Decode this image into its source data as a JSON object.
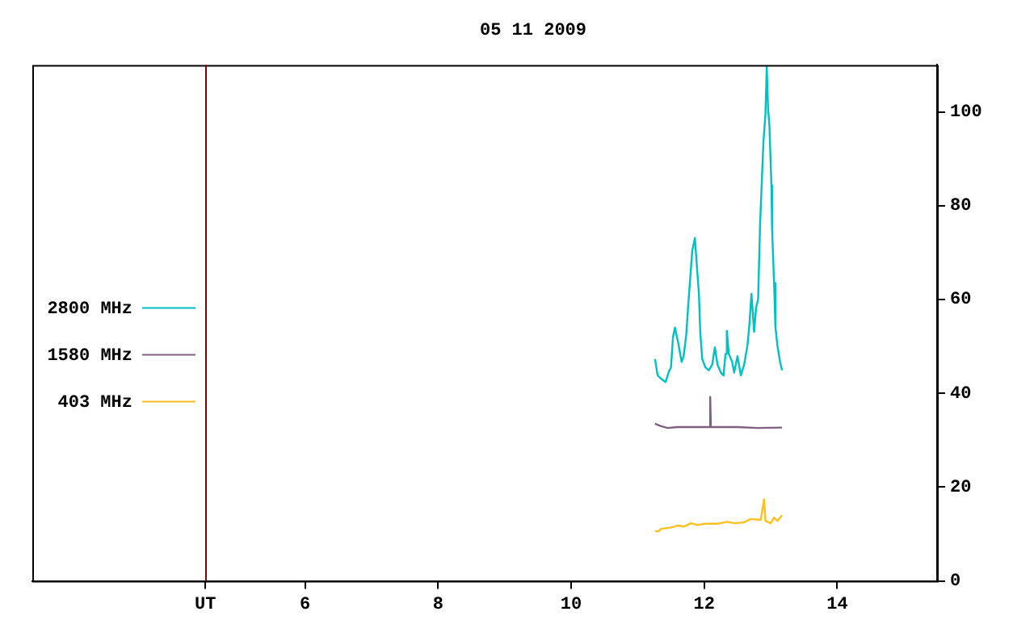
{
  "chart_data": {
    "type": "line",
    "title": "05 11 2009",
    "xlim": [
      1.9,
      15.5
    ],
    "xticks": [
      {
        "value": 4.5,
        "label": "UT"
      },
      6,
      8,
      10,
      12,
      14
    ],
    "ylim": [
      0,
      110
    ],
    "yticks": [
      0,
      20,
      40,
      60,
      80,
      100
    ],
    "grid": false,
    "legend": "left",
    "marker": "none",
    "line_style": "solid",
    "ref_lines": [
      {
        "axis": "x",
        "value": 4.5,
        "label": null,
        "color": "#800000"
      }
    ],
    "series": [
      {
        "name": "2800 MHz",
        "color": "#00c0c0",
        "x": [
          11.26,
          11.3,
          11.36,
          11.42,
          11.47,
          11.5,
          11.53,
          11.56,
          11.61,
          11.66,
          11.69,
          11.73,
          11.76,
          11.79,
          11.82,
          11.86,
          11.89,
          11.92,
          11.94,
          11.97,
          12.02,
          12.07,
          12.12,
          12.16,
          12.2,
          12.25,
          12.29,
          12.32,
          12.34,
          12.37,
          12.42,
          12.45,
          12.5,
          12.55,
          12.6,
          12.65,
          12.68,
          12.71,
          12.75,
          12.78,
          12.81,
          12.84,
          12.87,
          12.89,
          12.92,
          12.94,
          12.96,
          12.98,
          13.01,
          13.02,
          13.05,
          13.07,
          13.1,
          13.14,
          13.17
        ],
        "values": [
          47.3,
          43.8,
          43.0,
          42.4,
          44.7,
          45.5,
          51.9,
          54.0,
          50.7,
          46.7,
          47.9,
          52.5,
          58.9,
          64.6,
          70.4,
          73.1,
          67.0,
          61.2,
          53.1,
          47.3,
          45.5,
          44.9,
          46.1,
          49.8,
          46.1,
          44.4,
          43.8,
          48.4,
          53.3,
          48.4,
          46.7,
          44.4,
          47.9,
          43.8,
          46.1,
          50.2,
          54.8,
          61.2,
          53.1,
          58.3,
          60.0,
          76.2,
          86.6,
          93.6,
          99.4,
          109.5,
          100.6,
          97.1,
          84.3,
          75.1,
          63.5,
          54.2,
          50.2,
          46.7,
          44.9
        ]
      },
      {
        "name": "1580 MHz",
        "color": "#806080",
        "x": [
          11.26,
          11.35,
          11.45,
          11.6,
          12.0,
          12.08,
          12.09,
          12.1,
          12.5,
          12.8,
          13.17
        ],
        "values": [
          33.5,
          33.0,
          32.6,
          32.8,
          32.8,
          32.8,
          39.2,
          32.8,
          32.8,
          32.6,
          32.7
        ]
      },
      {
        "name": "403 MHz",
        "color": "#ffc020",
        "x": [
          11.26,
          11.32,
          11.35,
          11.5,
          11.6,
          11.7,
          11.8,
          11.9,
          12.0,
          12.2,
          12.35,
          12.45,
          12.6,
          12.7,
          12.85,
          12.9,
          12.92,
          13.0,
          13.05,
          13.1,
          13.17
        ],
        "values": [
          10.6,
          10.6,
          11.1,
          11.4,
          11.8,
          11.6,
          12.3,
          11.9,
          12.2,
          12.2,
          12.6,
          12.3,
          12.5,
          13.2,
          13.0,
          17.4,
          12.8,
          12.3,
          13.5,
          12.8,
          14.0
        ]
      }
    ]
  }
}
